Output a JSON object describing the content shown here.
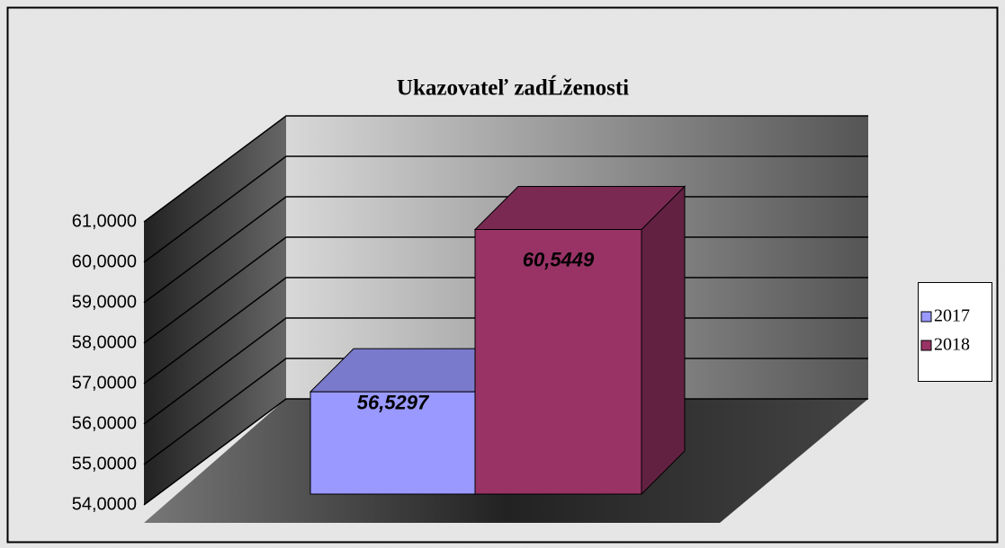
{
  "chart_data": {
    "type": "bar3d",
    "title": "Ukazovateľ zadĹženosti",
    "categories": [
      null
    ],
    "series": [
      {
        "name": "2017",
        "color": "#9999ff",
        "values": [
          56.5297
        ],
        "value_labels": [
          "56,5297"
        ]
      },
      {
        "name": "2018",
        "color": "#993366",
        "values": [
          60.5449
        ],
        "value_labels": [
          "60,5449"
        ]
      }
    ],
    "ylim": [
      54,
      61
    ],
    "yticks": [
      {
        "value": 54,
        "label": "54,0000"
      },
      {
        "value": 55,
        "label": "55,0000"
      },
      {
        "value": 56,
        "label": "56,0000"
      },
      {
        "value": 57,
        "label": "57,0000"
      },
      {
        "value": 58,
        "label": "58,0000"
      },
      {
        "value": 59,
        "label": "59,0000"
      },
      {
        "value": 60,
        "label": "60,0000"
      },
      {
        "value": 61,
        "label": "61,0000"
      }
    ],
    "grid": true,
    "legend": "right"
  }
}
